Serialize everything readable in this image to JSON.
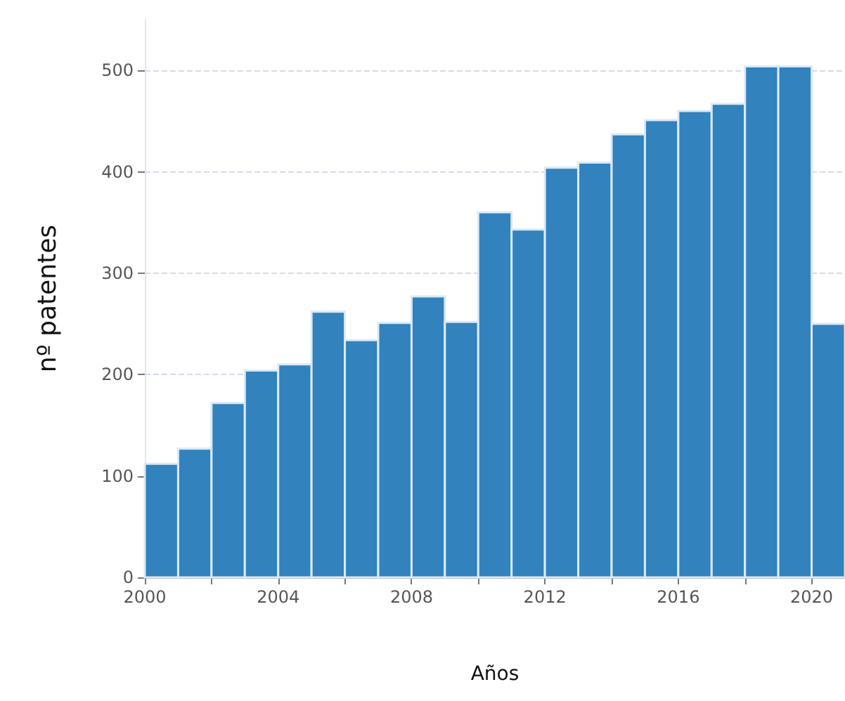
{
  "chart_data": {
    "type": "histogram",
    "xlabel": "Años",
    "ylabel": "nº patentes",
    "bins": [
      2000,
      2001,
      2002,
      2003,
      2004,
      2005,
      2006,
      2007,
      2008,
      2009,
      2010,
      2011,
      2012,
      2013,
      2014,
      2015,
      2016,
      2017,
      2018,
      2019,
      2020,
      2021
    ],
    "values": [
      112,
      127,
      172,
      204,
      210,
      262,
      234,
      251,
      277,
      252,
      360,
      343,
      404,
      409,
      437,
      451,
      460,
      467,
      504,
      504,
      250
    ],
    "color": "#3182bd",
    "xlim": [
      2000,
      2021
    ],
    "xticks": [
      2000,
      {
        "value": 2002,
        "label": null
      },
      2004,
      {
        "value": 2006,
        "label": null
      },
      2008,
      {
        "value": 2010,
        "label": null
      },
      2012,
      {
        "value": 2014,
        "label": null
      },
      2016,
      {
        "value": 2018,
        "label": null
      },
      2020
    ],
    "ylim": [
      0,
      550
    ],
    "yticks": [
      0,
      100,
      200,
      300,
      400,
      500
    ],
    "grid": "y"
  }
}
